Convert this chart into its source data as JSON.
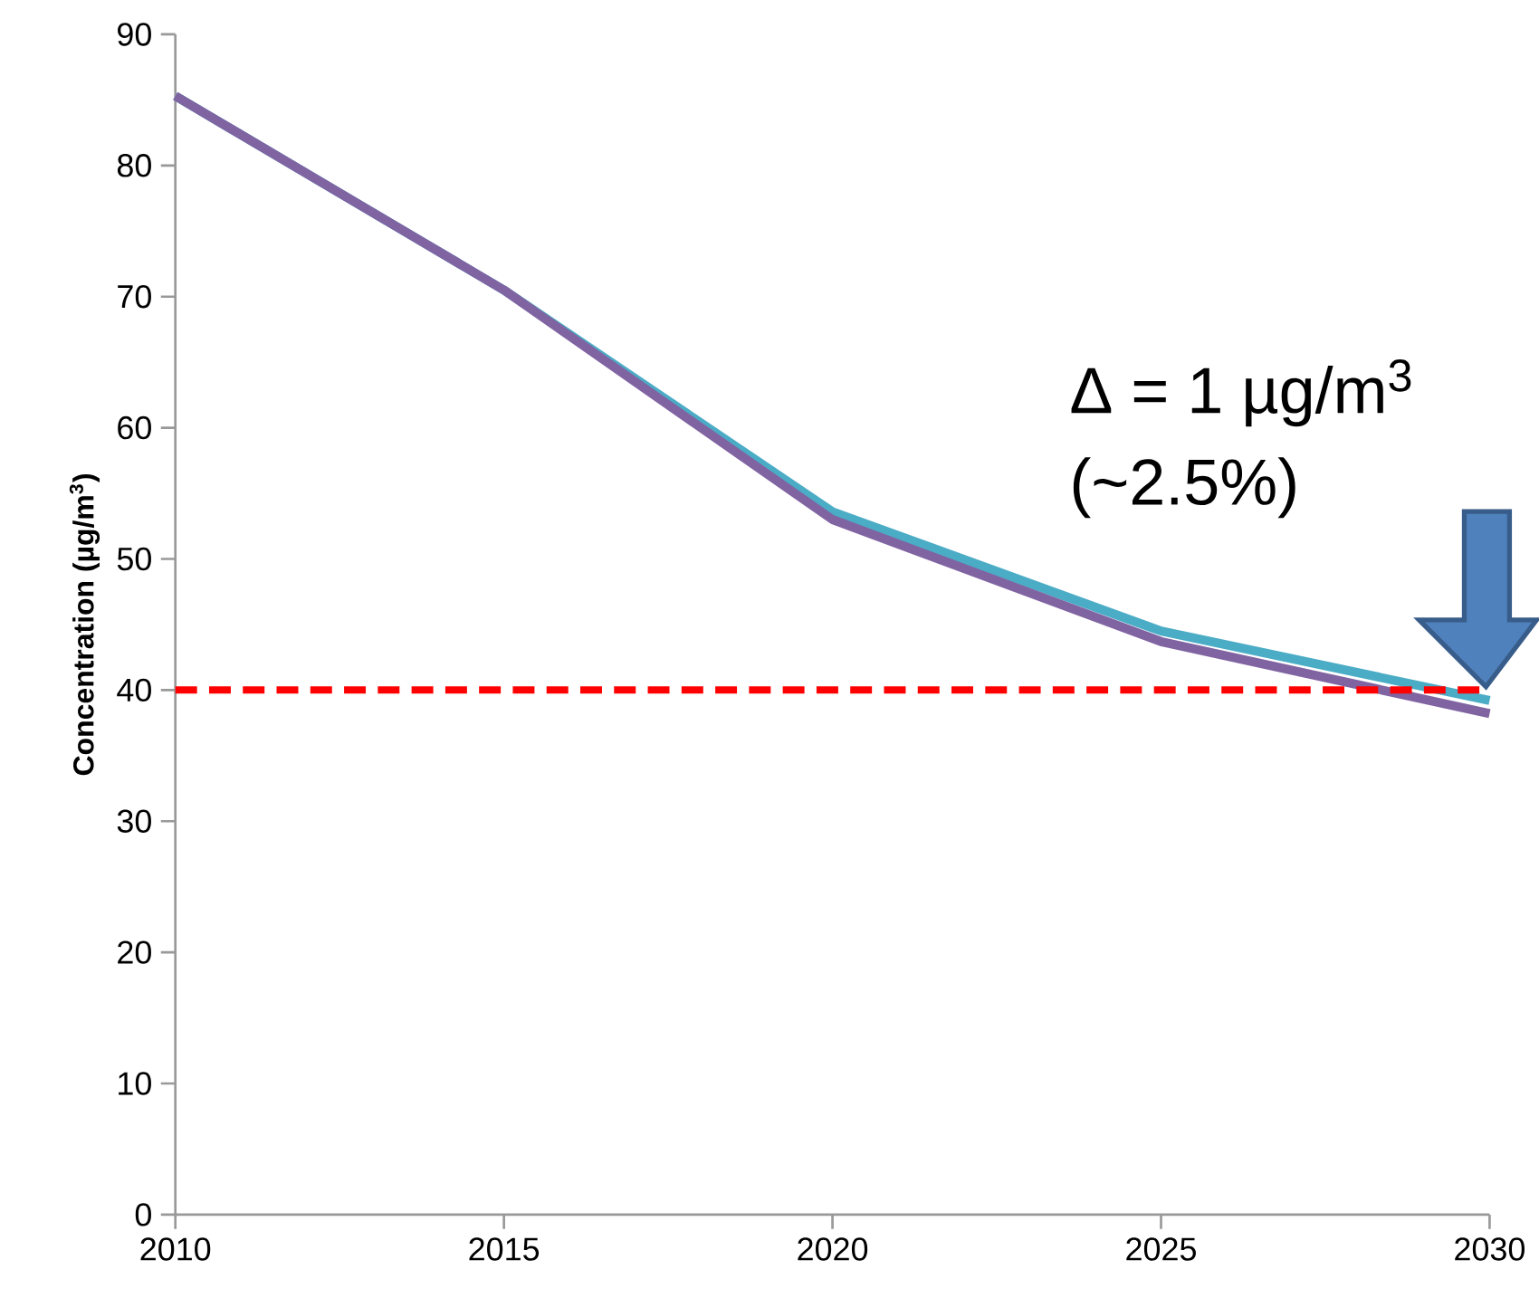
{
  "chart_data": {
    "type": "line",
    "ylabel": "Concentration (µg/m$^{3}$)",
    "x": [
      2010,
      2015,
      2020,
      2025,
      2030
    ],
    "series": [
      {
        "color": "#4bacc6",
        "values": [
          85.3,
          70.5,
          53.6,
          44.5,
          39.2
        ]
      },
      {
        "color": "#8064a2",
        "values": [
          85.3,
          70.5,
          53.0,
          43.7,
          38.2
        ]
      }
    ],
    "xlim": [
      2010,
      2030
    ],
    "ylim": [
      0,
      90
    ],
    "xticks": [
      2010,
      2015,
      2020,
      2025,
      2030
    ],
    "yticks": [
      0,
      10,
      20,
      30,
      40,
      50,
      60,
      70,
      80,
      90
    ],
    "ref_lines": [
      {
        "axis": "y",
        "value": 40,
        "color": "#ff0000",
        "line_style": "dashed"
      }
    ],
    "annotations": [
      "Δ = 1 µg/m$^{3}$",
      "(~2.5%)"
    ],
    "marker": "none",
    "line_style": "solid"
  }
}
